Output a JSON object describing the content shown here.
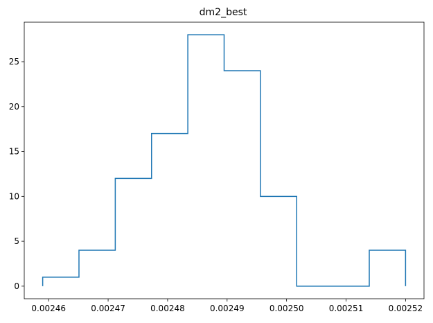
{
  "chart_data": {
    "type": "histogram-step",
    "title": "dm2_best",
    "xlabel": "",
    "ylabel": "",
    "bin_edges": [
      0.002459,
      0.0024651,
      0.0024712,
      0.0024773,
      0.0024834,
      0.0024895,
      0.0024956,
      0.0025017,
      0.0025078,
      0.0025139,
      0.00252
    ],
    "counts": [
      1,
      4,
      12,
      17,
      28,
      24,
      10,
      0,
      0,
      4
    ],
    "xlim": [
      0.0024559,
      0.0025231
    ],
    "ylim": [
      -1.4,
      29.4
    ],
    "xticks": [
      0.00246,
      0.00247,
      0.00248,
      0.00249,
      0.0025,
      0.00251,
      0.00252
    ],
    "xtick_labels": [
      "0.00246",
      "0.00247",
      "0.00248",
      "0.00249",
      "0.00250",
      "0.00251",
      "0.00252"
    ],
    "yticks": [
      0,
      5,
      10,
      15,
      20,
      25
    ],
    "ytick_labels": [
      "0",
      "5",
      "10",
      "15",
      "20",
      "25"
    ],
    "grid": false,
    "line_color": "#1f77b4"
  }
}
